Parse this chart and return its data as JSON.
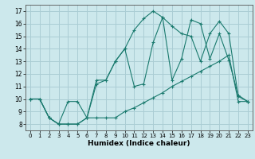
{
  "xlabel": "Humidex (Indice chaleur)",
  "background_color": "#cce8ec",
  "grid_color": "#aacdd4",
  "line_color": "#1a7a6e",
  "xlim": [
    -0.5,
    23.5
  ],
  "ylim": [
    7.5,
    17.5
  ],
  "xticks": [
    0,
    1,
    2,
    3,
    4,
    5,
    6,
    7,
    8,
    9,
    10,
    11,
    12,
    13,
    14,
    15,
    16,
    17,
    18,
    19,
    20,
    21,
    22,
    23
  ],
  "yticks": [
    8,
    9,
    10,
    11,
    12,
    13,
    14,
    15,
    16,
    17
  ],
  "series": [
    {
      "x": [
        0,
        1,
        2,
        3,
        4,
        5,
        6,
        7,
        8,
        9,
        10,
        11,
        12,
        13,
        14,
        15,
        16,
        17,
        18,
        19,
        20,
        21,
        22,
        23
      ],
      "y": [
        10,
        10,
        8.5,
        8,
        8,
        8,
        8.5,
        8.5,
        8.5,
        8.5,
        9.0,
        9.3,
        9.7,
        10.1,
        10.5,
        11.0,
        11.4,
        11.8,
        12.2,
        12.6,
        13.0,
        13.5,
        9.8,
        9.8
      ]
    },
    {
      "x": [
        0,
        1,
        2,
        3,
        4,
        5,
        6,
        7,
        8,
        9,
        10,
        11,
        12,
        13,
        14,
        15,
        16,
        17,
        18,
        19,
        20,
        21,
        22,
        23
      ],
      "y": [
        10,
        10,
        8.5,
        8,
        8,
        8,
        8.5,
        11.2,
        11.5,
        13.0,
        14.0,
        15.5,
        16.4,
        17.0,
        16.5,
        15.8,
        15.2,
        15.0,
        13.0,
        15.2,
        16.2,
        15.2,
        10.2,
        9.8
      ]
    },
    {
      "x": [
        0,
        1,
        2,
        3,
        4,
        5,
        6,
        7,
        8,
        9,
        10,
        11,
        12,
        13,
        14,
        15,
        16,
        17,
        18,
        19,
        20,
        21,
        22,
        23
      ],
      "y": [
        10,
        10,
        8.5,
        8,
        9.8,
        9.8,
        8.5,
        11.5,
        11.5,
        13.0,
        14.0,
        11.0,
        11.2,
        14.5,
        16.5,
        11.5,
        13.2,
        16.3,
        16.0,
        13.2,
        15.2,
        13.1,
        10.3,
        9.8
      ]
    }
  ]
}
